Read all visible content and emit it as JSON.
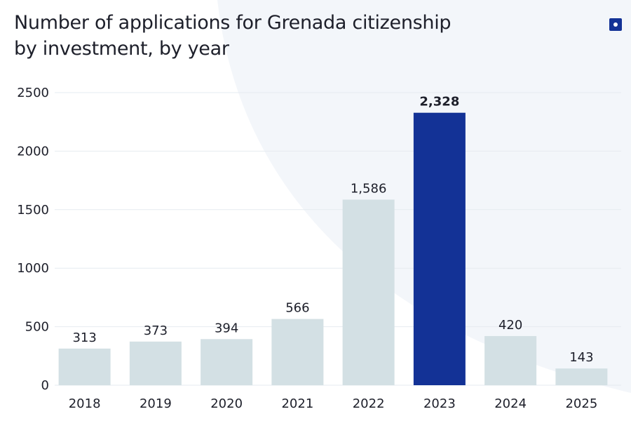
{
  "chart_data": {
    "type": "bar",
    "title": "Number of applications for Grenada citizenship by investment, by year",
    "categories": [
      "2018",
      "2019",
      "2020",
      "2021",
      "2022",
      "2023",
      "2024",
      "2025"
    ],
    "values": [
      313,
      373,
      394,
      566,
      1586,
      2328,
      420,
      143
    ],
    "value_labels": [
      "313",
      "373",
      "394",
      "566",
      "1,586",
      "2,328",
      "420",
      "143"
    ],
    "colors": [
      "#d3e0e4",
      "#d3e0e4",
      "#d3e0e4",
      "#d3e0e4",
      "#d3e0e4",
      "#133296",
      "#d3e0e4",
      "#d3e0e4"
    ],
    "ylim": [
      0,
      2500
    ],
    "yticks": [
      0,
      500,
      1000,
      1500,
      2000,
      2500
    ],
    "grid": true
  }
}
